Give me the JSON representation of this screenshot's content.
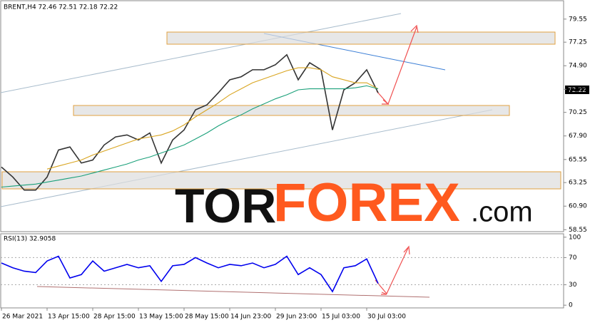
{
  "header": "BRENT,H4  72.46 72.51 72.18 72.22",
  "current_price": "72.22",
  "watermark": [
    "TOR",
    "FOREX",
    ".com"
  ],
  "x_axis": {
    "xlim": [
      -0.5,
      197
    ],
    "xticks": [
      {
        "value": 0,
        "label": "26 Mar 2021"
      },
      {
        "value": 16,
        "label": "13 Apr 15:00"
      },
      {
        "value": 32,
        "label": "28 Apr 15:00"
      },
      {
        "value": 48,
        "label": "13 May 15:00"
      },
      {
        "value": 64,
        "label": "28 May 15:00"
      },
      {
        "value": 80,
        "label": "14 Jun 23:00"
      },
      {
        "value": 96,
        "label": "29 Jun 23:00"
      },
      {
        "value": 112,
        "label": "15 Jul 03:00"
      },
      {
        "value": 128,
        "label": "30 Jul 03:00"
      }
    ]
  },
  "chart_data": [
    {
      "type": "line",
      "x": [
        0,
        4,
        8,
        12,
        16,
        20,
        24,
        28,
        32,
        36,
        40,
        44,
        48,
        52,
        56,
        60,
        64,
        68,
        72,
        76,
        80,
        84,
        88,
        92,
        96,
        100,
        104,
        108,
        112,
        116,
        120,
        124,
        128,
        132
      ],
      "ylim": [
        58.5,
        81.1
      ],
      "yticks": [
        79.55,
        77.25,
        {
          "value": 74.9,
          "label": "74.90"
        },
        72.55,
        70.25,
        {
          "value": 67.9,
          "label": "67.90"
        },
        65.55,
        63.25,
        {
          "value": 60.9,
          "label": "60.90"
        },
        58.55
      ],
      "series": [
        {
          "name": "BRENT",
          "color": "#333333",
          "values": [
            64.8,
            63.8,
            62.5,
            62.5,
            63.8,
            66.5,
            66.8,
            65.2,
            65.5,
            67.0,
            67.8,
            68.0,
            67.5,
            68.2,
            65.2,
            67.5,
            68.5,
            70.5,
            71.0,
            72.2,
            73.5,
            73.8,
            74.5,
            74.5,
            75.0,
            76.0,
            73.5,
            75.2,
            74.5,
            68.5,
            72.5,
            73.2,
            74.5,
            72.2
          ]
        },
        {
          "name": "MA fast",
          "color": "#d9a520",
          "values": [
            null,
            null,
            null,
            null,
            64.6,
            64.9,
            65.2,
            65.5,
            66.0,
            66.4,
            66.8,
            67.2,
            67.6,
            67.8,
            68.0,
            68.4,
            69.0,
            69.8,
            70.5,
            71.2,
            72.0,
            72.6,
            73.2,
            73.6,
            74.0,
            74.4,
            74.7,
            74.7,
            74.5,
            73.8,
            73.5,
            73.2,
            73.2,
            72.6
          ]
        },
        {
          "name": "MA slow",
          "color": "#1aa07a",
          "values": [
            62.8,
            62.9,
            63.0,
            63.1,
            63.3,
            63.5,
            63.7,
            63.9,
            64.2,
            64.5,
            64.8,
            65.1,
            65.5,
            65.8,
            66.2,
            66.6,
            67.0,
            67.6,
            68.2,
            68.9,
            69.5,
            70.0,
            70.6,
            71.1,
            71.6,
            72.0,
            72.5,
            72.6,
            72.6,
            72.6,
            72.6,
            72.7,
            72.9,
            72.6
          ]
        }
      ]
    },
    {
      "type": "line",
      "title": "RSI(13) 32.9058",
      "x": [
        0,
        4,
        8,
        12,
        16,
        20,
        24,
        28,
        32,
        36,
        40,
        44,
        48,
        52,
        56,
        60,
        64,
        68,
        72,
        76,
        80,
        84,
        88,
        92,
        96,
        100,
        104,
        108,
        112,
        116,
        120,
        124,
        128,
        132
      ],
      "ylim": [
        -4,
        105
      ],
      "yticks": [
        0,
        30,
        70,
        100
      ],
      "grid_levels": [
        30,
        70
      ],
      "series": [
        {
          "name": "RSI",
          "color": "#0000ee",
          "values": [
            62,
            55,
            50,
            48,
            65,
            72,
            40,
            45,
            65,
            50,
            55,
            60,
            55,
            58,
            35,
            58,
            60,
            70,
            62,
            55,
            60,
            58,
            62,
            55,
            60,
            72,
            45,
            55,
            45,
            20,
            55,
            58,
            68,
            32
          ]
        }
      ]
    }
  ]
}
